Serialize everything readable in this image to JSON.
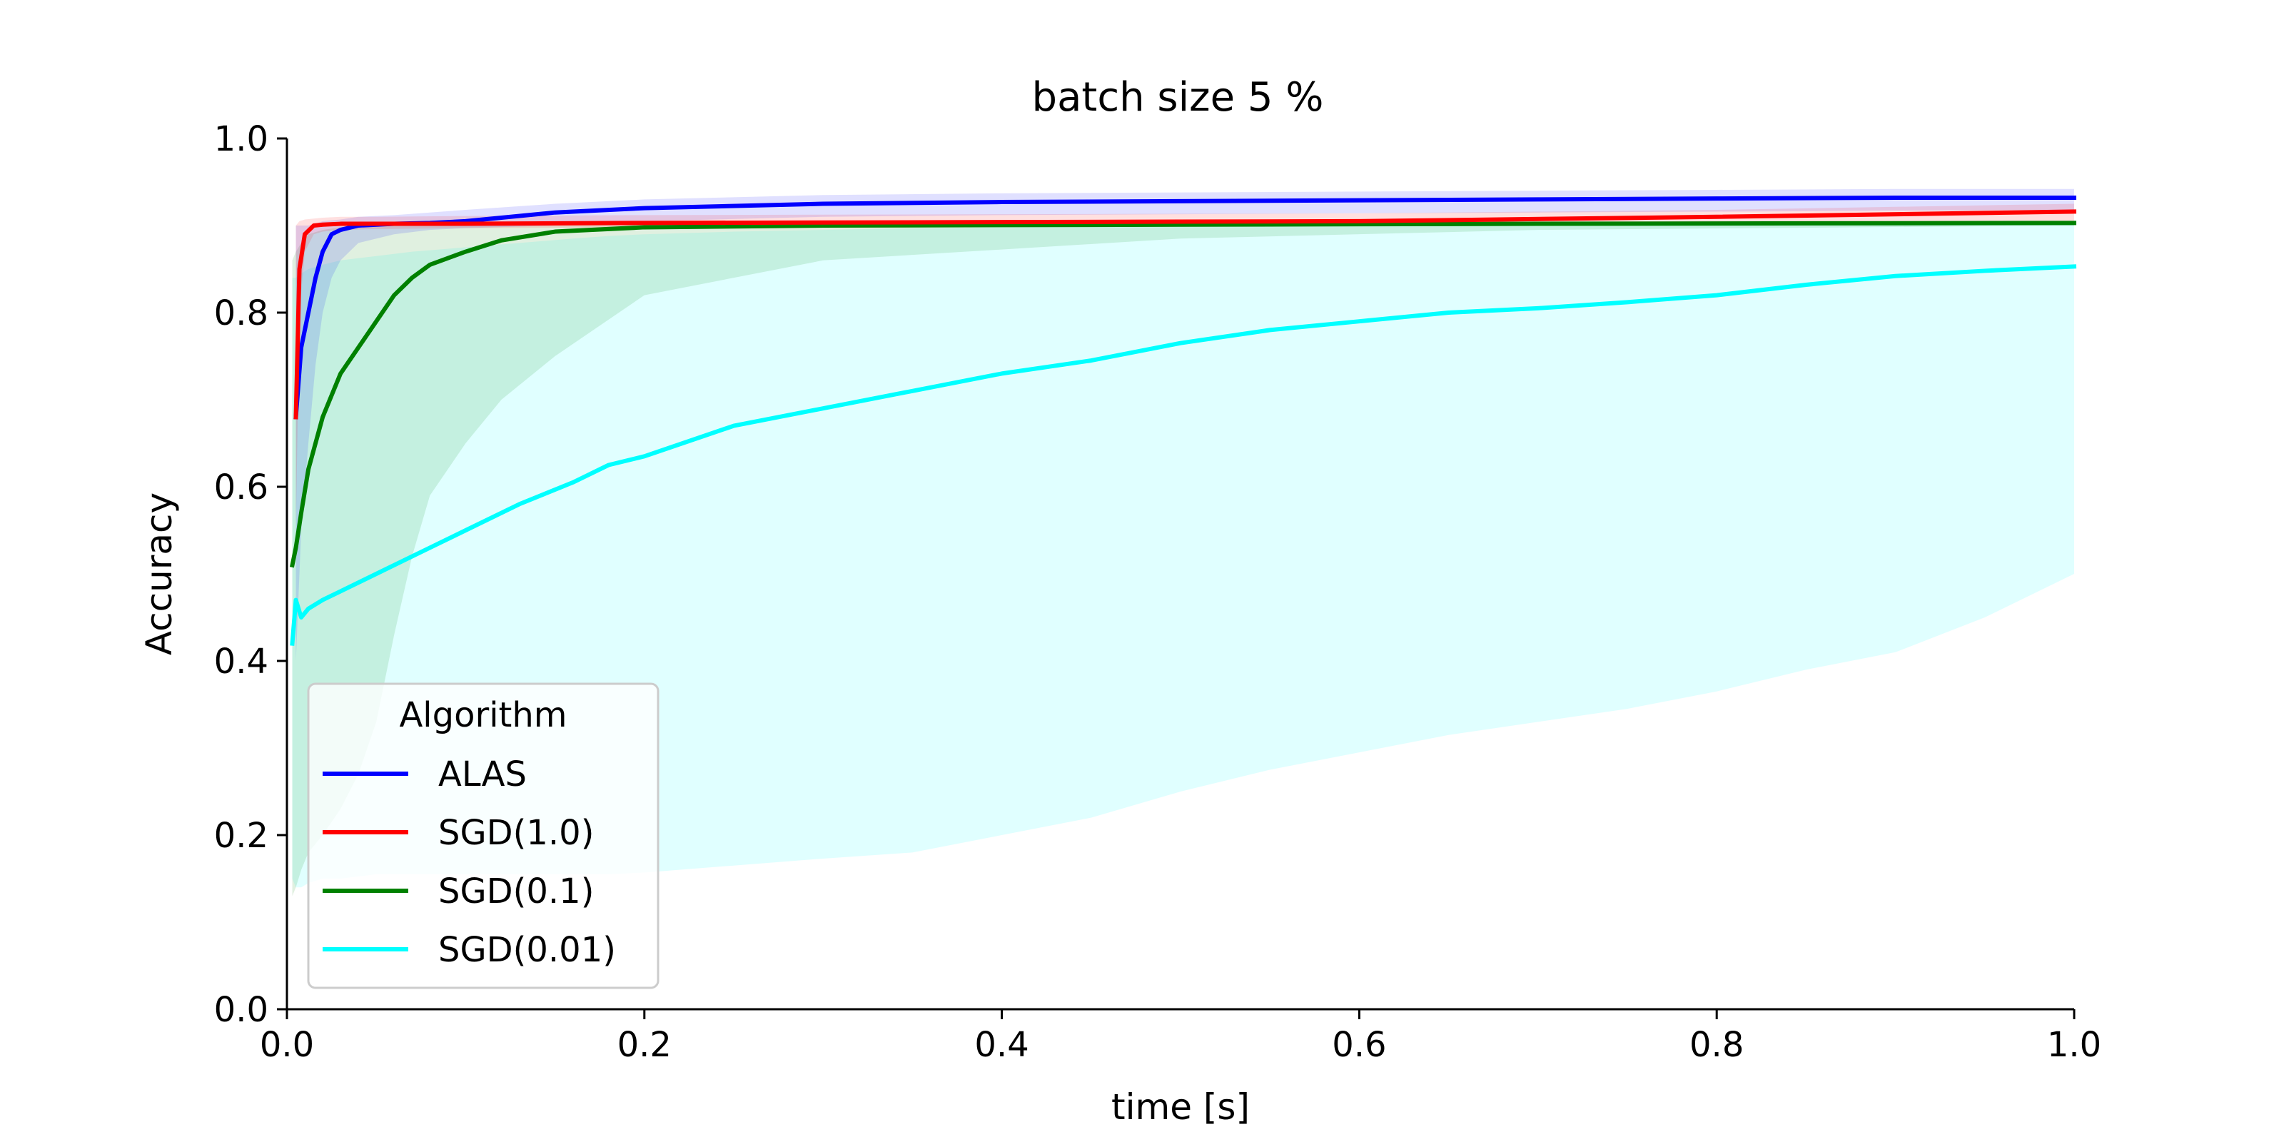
{
  "chart_data": {
    "type": "line",
    "title": "batch size 5 %",
    "xlabel": "time [s]",
    "ylabel": "Accuracy",
    "xlim": [
      0,
      1
    ],
    "ylim": [
      0,
      1
    ],
    "xticks": [
      "0.0",
      "0.2",
      "0.4",
      "0.6",
      "0.8",
      "1.0"
    ],
    "yticks": [
      "0.0",
      "0.2",
      "0.4",
      "0.6",
      "0.8",
      "1.0"
    ],
    "grid": false,
    "legend": {
      "title": "Algorithm",
      "placement": "lower-left"
    },
    "series": [
      {
        "name": "SGD(0.01)",
        "color": "#00ffff",
        "x": [
          0.003,
          0.005,
          0.008,
          0.012,
          0.02,
          0.03,
          0.05,
          0.07,
          0.1,
          0.13,
          0.16,
          0.18,
          0.2,
          0.25,
          0.3,
          0.35,
          0.4,
          0.45,
          0.5,
          0.55,
          0.6,
          0.65,
          0.7,
          0.75,
          0.8,
          0.85,
          0.9,
          0.95,
          1.0
        ],
        "values": [
          0.42,
          0.47,
          0.45,
          0.46,
          0.47,
          0.48,
          0.5,
          0.52,
          0.55,
          0.58,
          0.605,
          0.625,
          0.635,
          0.67,
          0.69,
          0.71,
          0.73,
          0.745,
          0.765,
          0.78,
          0.79,
          0.8,
          0.805,
          0.812,
          0.82,
          0.832,
          0.842,
          0.848,
          0.853
        ],
        "band_lower": [
          0.15,
          0.14,
          0.14,
          0.145,
          0.15,
          0.15,
          0.155,
          0.155,
          0.155,
          0.155,
          0.155,
          0.155,
          0.157,
          0.165,
          0.173,
          0.18,
          0.2,
          0.22,
          0.25,
          0.275,
          0.295,
          0.315,
          0.33,
          0.345,
          0.365,
          0.39,
          0.41,
          0.45,
          0.5
        ],
        "band_upper": [
          0.84,
          0.84,
          0.845,
          0.85,
          0.855,
          0.86,
          0.865,
          0.87,
          0.875,
          0.88,
          0.885,
          0.888,
          0.89,
          0.893,
          0.895,
          0.897,
          0.898,
          0.899,
          0.9,
          0.901,
          0.902,
          0.902,
          0.903,
          0.903,
          0.904,
          0.904,
          0.904,
          0.905,
          0.905
        ]
      },
      {
        "name": "SGD(0.1)",
        "color": "#008000",
        "x": [
          0.003,
          0.005,
          0.008,
          0.012,
          0.02,
          0.03,
          0.04,
          0.05,
          0.06,
          0.07,
          0.08,
          0.1,
          0.12,
          0.15,
          0.2,
          0.3,
          0.5,
          0.7,
          1.0
        ],
        "values": [
          0.51,
          0.53,
          0.57,
          0.62,
          0.68,
          0.73,
          0.76,
          0.79,
          0.82,
          0.84,
          0.855,
          0.87,
          0.883,
          0.893,
          0.898,
          0.9,
          0.901,
          0.902,
          0.903
        ],
        "band_lower": [
          0.13,
          0.14,
          0.16,
          0.18,
          0.2,
          0.23,
          0.27,
          0.33,
          0.43,
          0.52,
          0.59,
          0.65,
          0.7,
          0.75,
          0.82,
          0.86,
          0.885,
          0.895,
          0.9
        ],
        "band_upper": [
          0.86,
          0.87,
          0.88,
          0.89,
          0.895,
          0.898,
          0.9,
          0.901,
          0.902,
          0.902,
          0.903,
          0.903,
          0.904,
          0.904,
          0.905,
          0.905,
          0.905,
          0.905,
          0.905
        ]
      },
      {
        "name": "ALAS",
        "color": "#0000ff",
        "x": [
          0.005,
          0.008,
          0.012,
          0.016,
          0.02,
          0.025,
          0.03,
          0.04,
          0.06,
          0.08,
          0.1,
          0.15,
          0.2,
          0.3,
          0.4,
          0.5,
          0.6,
          0.7,
          0.8,
          0.9,
          1.0
        ],
        "values": [
          0.68,
          0.76,
          0.8,
          0.84,
          0.87,
          0.89,
          0.895,
          0.9,
          0.902,
          0.903,
          0.905,
          0.915,
          0.92,
          0.925,
          0.927,
          0.928,
          0.929,
          0.93,
          0.931,
          0.932,
          0.932
        ],
        "band_lower": [
          0.4,
          0.55,
          0.65,
          0.74,
          0.8,
          0.84,
          0.86,
          0.88,
          0.89,
          0.895,
          0.897,
          0.9,
          0.905,
          0.91,
          0.912,
          0.913,
          0.914,
          0.915,
          0.916,
          0.917,
          0.918
        ],
        "band_upper": [
          0.9,
          0.9,
          0.9,
          0.902,
          0.905,
          0.906,
          0.907,
          0.91,
          0.912,
          0.915,
          0.918,
          0.925,
          0.93,
          0.935,
          0.937,
          0.938,
          0.939,
          0.94,
          0.941,
          0.942,
          0.942
        ]
      },
      {
        "name": "SGD(1.0)",
        "color": "#ff0000",
        "x": [
          0.005,
          0.007,
          0.01,
          0.015,
          0.02,
          0.03,
          0.05,
          0.1,
          0.2,
          0.4,
          0.6,
          0.8,
          1.0
        ],
        "values": [
          0.68,
          0.85,
          0.89,
          0.9,
          0.901,
          0.902,
          0.902,
          0.902,
          0.903,
          0.904,
          0.905,
          0.91,
          0.916
        ],
        "band_lower": [
          0.55,
          0.8,
          0.87,
          0.89,
          0.893,
          0.895,
          0.896,
          0.897,
          0.898,
          0.899,
          0.9,
          0.902,
          0.905
        ],
        "band_upper": [
          0.9,
          0.905,
          0.907,
          0.908,
          0.909,
          0.91,
          0.91,
          0.911,
          0.912,
          0.913,
          0.914,
          0.918,
          0.925
        ]
      }
    ],
    "legend_order": [
      "ALAS",
      "SGD(1.0)",
      "SGD(0.1)",
      "SGD(0.01)"
    ]
  }
}
